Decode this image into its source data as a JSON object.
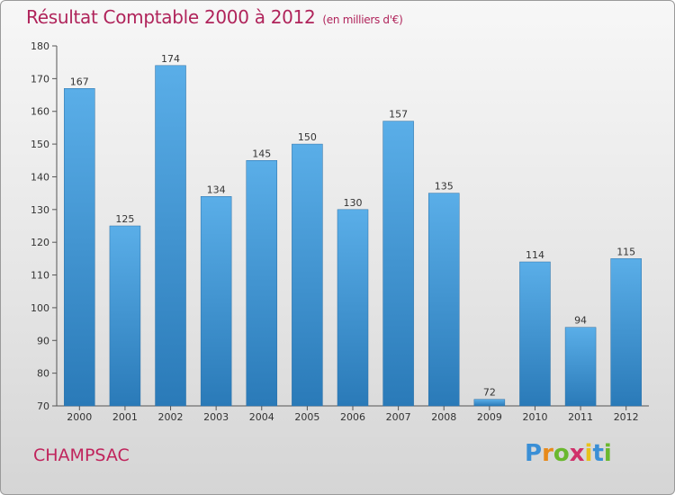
{
  "chart_data": {
    "type": "bar",
    "title": "Résultat Comptable 2000 à 2012",
    "subtitle": "(en milliers d'€)",
    "categories": [
      "2000",
      "2001",
      "2002",
      "2003",
      "2004",
      "2005",
      "2006",
      "2007",
      "2008",
      "2009",
      "2010",
      "2011",
      "2012"
    ],
    "values": [
      167,
      125,
      174,
      134,
      145,
      150,
      130,
      157,
      135,
      72,
      114,
      94,
      115
    ],
    "ylim": [
      70,
      180
    ],
    "yticks": [
      70,
      80,
      90,
      100,
      110,
      120,
      130,
      140,
      150,
      160,
      170,
      180
    ],
    "xlabel": "",
    "ylabel": "",
    "grid": false,
    "bar_color_top": "#5aaee8",
    "bar_color_bottom": "#2a7ab8"
  },
  "footer": {
    "commune": "CHAMPSAC",
    "brand_letters": [
      "P",
      "r",
      "o",
      "x",
      "i",
      "t",
      "i"
    ],
    "brand_colors": [
      "#3a8fd6",
      "#e88a1a",
      "#6ab82e",
      "#d0306a",
      "#e8c21a",
      "#3a8fd6",
      "#6ab82e"
    ]
  }
}
